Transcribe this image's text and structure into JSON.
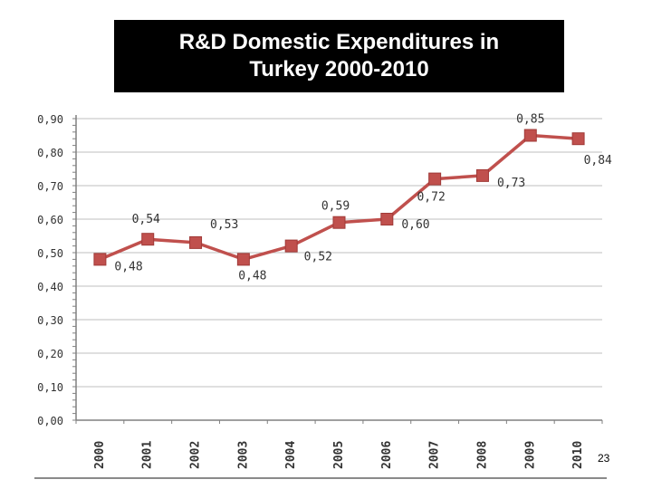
{
  "title": {
    "line1": "R&D Domestic Expenditures in",
    "line2": "Turkey 2000-2010"
  },
  "page_number": "23",
  "chart_data": {
    "type": "line",
    "categories": [
      "2000",
      "2001",
      "2002",
      "2003",
      "2004",
      "2005",
      "2006",
      "2007",
      "2008",
      "2009",
      "2010"
    ],
    "series": [
      {
        "values": [
          0.48,
          0.54,
          0.53,
          0.48,
          0.52,
          0.59,
          0.6,
          0.72,
          0.73,
          0.85,
          0.84
        ],
        "labels": [
          "0,48",
          "0,54",
          "0,53",
          "0,48",
          "0,52",
          "0,59",
          "0,60",
          "0,72",
          "0,73",
          "0,85",
          "0,84"
        ],
        "color": "#c0504d"
      }
    ],
    "y_ticks": [
      "0,00",
      "0,10",
      "0,20",
      "0,30",
      "0,40",
      "0,50",
      "0,60",
      "0,70",
      "0,80",
      "0,90"
    ],
    "ylim": [
      0,
      0.9
    ],
    "grid": true,
    "gridline_color": "#bfbfbf",
    "axis_color": "#808080"
  }
}
